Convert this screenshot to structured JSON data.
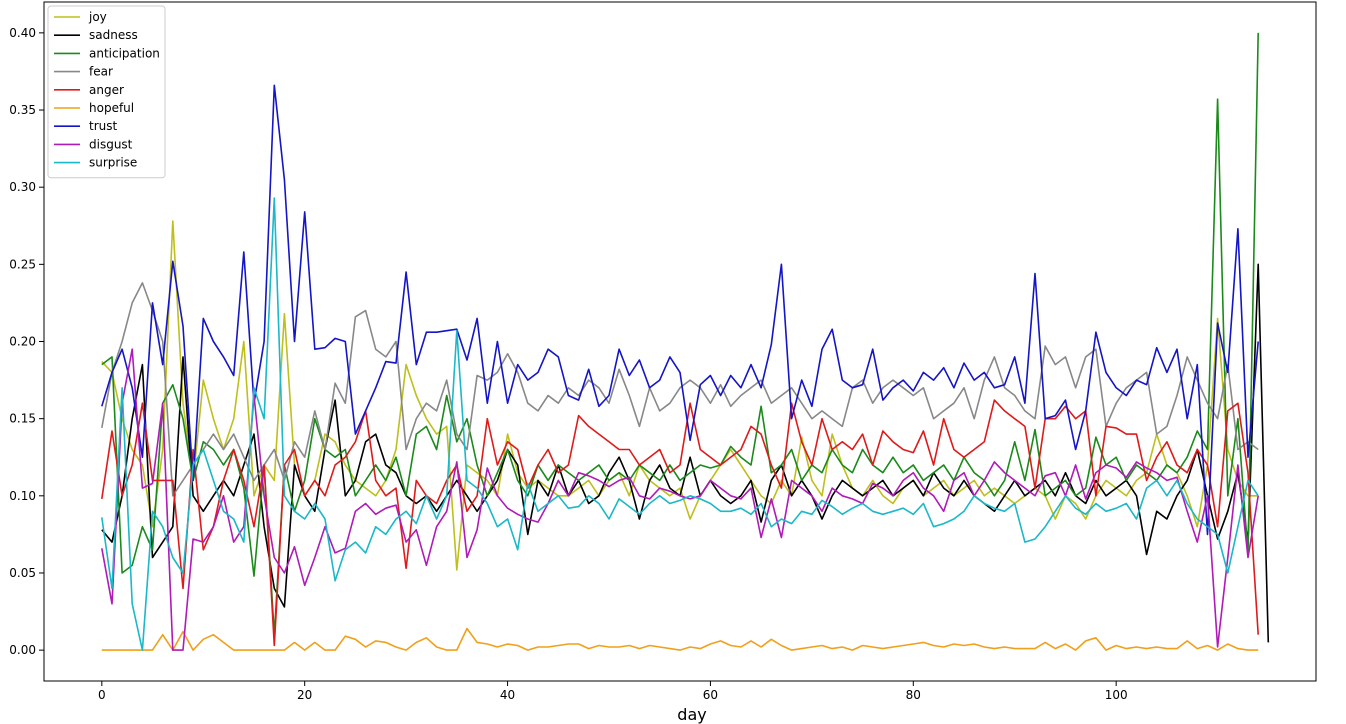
{
  "chart_data": {
    "type": "line",
    "title": "",
    "xlabel": "day",
    "ylabel": "",
    "xlim": [
      -5.7,
      119.7
    ],
    "ylim": [
      -0.02,
      0.42
    ],
    "xticks": [
      0,
      20,
      40,
      60,
      80,
      100
    ],
    "yticks": [
      0.0,
      0.05,
      0.1,
      0.15,
      0.2,
      0.25,
      0.3,
      0.35,
      0.4
    ],
    "grid": false,
    "legend_position": "top-left",
    "series": [
      {
        "name": "joy",
        "color": "#bfbf1c",
        "values": [
          0.187,
          0.18,
          0.15,
          0.13,
          0.12,
          0.08,
          0.13,
          0.278,
          0.16,
          0.11,
          0.175,
          0.15,
          0.13,
          0.15,
          0.2,
          0.1,
          0.12,
          0.11,
          0.218,
          0.12,
          0.1,
          0.11,
          0.14,
          0.135,
          0.12,
          0.11,
          0.105,
          0.1,
          0.11,
          0.13,
          0.185,
          0.165,
          0.15,
          0.14,
          0.145,
          0.052,
          0.12,
          0.115,
          0.11,
          0.1,
          0.14,
          0.115,
          0.105,
          0.11,
          0.105,
          0.1,
          0.1,
          0.105,
          0.11,
          0.1,
          0.11,
          0.115,
          0.1,
          0.12,
          0.11,
          0.105,
          0.1,
          0.105,
          0.085,
          0.1,
          0.11,
          0.12,
          0.13,
          0.12,
          0.11,
          0.1,
          0.095,
          0.11,
          0.1,
          0.138,
          0.11,
          0.1,
          0.14,
          0.12,
          0.105,
          0.1,
          0.11,
          0.1,
          0.095,
          0.105,
          0.11,
          0.1,
          0.105,
          0.11,
          0.1,
          0.105,
          0.11,
          0.1,
          0.105,
          0.1,
          0.095,
          0.1,
          0.105,
          0.1,
          0.085,
          0.1,
          0.095,
          0.085,
          0.1,
          0.11,
          0.105,
          0.1,
          0.11,
          0.115,
          0.14,
          0.12,
          0.115,
          0.1,
          0.08,
          0.12,
          0.215,
          0.13,
          0.11,
          0.1,
          0.1
        ]
      },
      {
        "name": "sadness",
        "color": "#000000",
        "values": [
          0.078,
          0.07,
          0.1,
          0.15,
          0.185,
          0.06,
          0.07,
          0.08,
          0.19,
          0.1,
          0.09,
          0.1,
          0.11,
          0.1,
          0.12,
          0.14,
          0.08,
          0.04,
          0.028,
          0.12,
          0.1,
          0.09,
          0.13,
          0.162,
          0.1,
          0.11,
          0.135,
          0.14,
          0.12,
          0.115,
          0.1,
          0.095,
          0.1,
          0.09,
          0.1,
          0.11,
          0.1,
          0.09,
          0.1,
          0.11,
          0.13,
          0.12,
          0.075,
          0.11,
          0.1,
          0.12,
          0.1,
          0.11,
          0.095,
          0.1,
          0.115,
          0.125,
          0.11,
          0.085,
          0.11,
          0.12,
          0.105,
          0.1,
          0.125,
          0.1,
          0.11,
          0.1,
          0.095,
          0.1,
          0.11,
          0.083,
          0.11,
          0.12,
          0.1,
          0.11,
          0.1,
          0.085,
          0.1,
          0.11,
          0.105,
          0.1,
          0.105,
          0.11,
          0.1,
          0.105,
          0.11,
          0.1,
          0.115,
          0.105,
          0.1,
          0.11,
          0.1,
          0.095,
          0.09,
          0.1,
          0.11,
          0.1,
          0.105,
          0.11,
          0.1,
          0.115,
          0.1,
          0.095,
          0.11,
          0.1,
          0.105,
          0.11,
          0.1,
          0.062,
          0.09,
          0.085,
          0.1,
          0.11,
          0.13,
          0.1,
          0.072,
          0.09,
          0.115,
          0.07,
          0.25,
          0.005
        ]
      },
      {
        "name": "anticipation",
        "color": "#1a8a1a",
        "values": [
          0.185,
          0.19,
          0.05,
          0.055,
          0.08,
          0.065,
          0.16,
          0.172,
          0.15,
          0.11,
          0.135,
          0.13,
          0.12,
          0.13,
          0.105,
          0.048,
          0.12,
          0.01,
          0.12,
          0.09,
          0.11,
          0.15,
          0.13,
          0.125,
          0.13,
          0.1,
          0.11,
          0.12,
          0.11,
          0.125,
          0.1,
          0.14,
          0.145,
          0.13,
          0.165,
          0.135,
          0.15,
          0.12,
          0.1,
          0.115,
          0.13,
          0.11,
          0.1,
          0.12,
          0.11,
          0.12,
          0.115,
          0.11,
          0.115,
          0.12,
          0.11,
          0.115,
          0.11,
          0.12,
          0.115,
          0.11,
          0.12,
          0.11,
          0.115,
          0.12,
          0.118,
          0.12,
          0.132,
          0.125,
          0.12,
          0.158,
          0.115,
          0.12,
          0.13,
          0.11,
          0.12,
          0.115,
          0.13,
          0.12,
          0.115,
          0.13,
          0.12,
          0.115,
          0.125,
          0.115,
          0.12,
          0.11,
          0.115,
          0.12,
          0.11,
          0.125,
          0.115,
          0.11,
          0.1,
          0.11,
          0.135,
          0.11,
          0.143,
          0.1,
          0.105,
          0.11,
          0.1,
          0.105,
          0.138,
          0.12,
          0.125,
          0.11,
          0.12,
          0.115,
          0.11,
          0.12,
          0.115,
          0.125,
          0.142,
          0.13,
          0.357,
          0.1,
          0.15,
          0.062,
          0.4
        ]
      },
      {
        "name": "fear",
        "color": "#888888",
        "values": [
          0.144,
          0.18,
          0.2,
          0.225,
          0.238,
          0.22,
          0.2,
          0.1,
          0.11,
          0.12,
          0.13,
          0.14,
          0.13,
          0.14,
          0.125,
          0.11,
          0.12,
          0.13,
          0.11,
          0.135,
          0.125,
          0.155,
          0.13,
          0.173,
          0.16,
          0.216,
          0.22,
          0.195,
          0.19,
          0.2,
          0.13,
          0.15,
          0.16,
          0.155,
          0.175,
          0.14,
          0.13,
          0.178,
          0.175,
          0.18,
          0.192,
          0.18,
          0.16,
          0.155,
          0.165,
          0.16,
          0.17,
          0.165,
          0.175,
          0.17,
          0.16,
          0.182,
          0.165,
          0.145,
          0.17,
          0.155,
          0.16,
          0.17,
          0.175,
          0.17,
          0.16,
          0.172,
          0.158,
          0.165,
          0.17,
          0.175,
          0.16,
          0.165,
          0.17,
          0.16,
          0.15,
          0.155,
          0.15,
          0.145,
          0.17,
          0.175,
          0.16,
          0.17,
          0.175,
          0.17,
          0.165,
          0.17,
          0.15,
          0.155,
          0.16,
          0.17,
          0.15,
          0.175,
          0.19,
          0.17,
          0.165,
          0.155,
          0.15,
          0.197,
          0.185,
          0.19,
          0.17,
          0.19,
          0.195,
          0.145,
          0.16,
          0.17,
          0.175,
          0.18,
          0.14,
          0.145,
          0.165,
          0.19,
          0.175,
          0.16,
          0.15,
          0.185,
          0.13,
          0.135,
          0.13
        ]
      },
      {
        "name": "anger",
        "color": "#e01a1a",
        "values": [
          0.098,
          0.142,
          0.1,
          0.12,
          0.16,
          0.11,
          0.11,
          0.11,
          0.04,
          0.13,
          0.065,
          0.08,
          0.11,
          0.13,
          0.11,
          0.08,
          0.12,
          0.003,
          0.12,
          0.13,
          0.1,
          0.11,
          0.1,
          0.12,
          0.125,
          0.135,
          0.155,
          0.11,
          0.1,
          0.105,
          0.053,
          0.11,
          0.1,
          0.095,
          0.11,
          0.12,
          0.09,
          0.1,
          0.15,
          0.12,
          0.135,
          0.13,
          0.105,
          0.12,
          0.13,
          0.115,
          0.12,
          0.152,
          0.145,
          0.14,
          0.135,
          0.13,
          0.13,
          0.12,
          0.125,
          0.13,
          0.115,
          0.12,
          0.16,
          0.13,
          0.125,
          0.12,
          0.125,
          0.13,
          0.145,
          0.14,
          0.12,
          0.105,
          0.16,
          0.135,
          0.12,
          0.15,
          0.13,
          0.135,
          0.13,
          0.14,
          0.12,
          0.142,
          0.135,
          0.13,
          0.128,
          0.142,
          0.12,
          0.15,
          0.13,
          0.125,
          0.13,
          0.135,
          0.162,
          0.155,
          0.15,
          0.145,
          0.105,
          0.15,
          0.15,
          0.158,
          0.15,
          0.155,
          0.1,
          0.145,
          0.144,
          0.14,
          0.14,
          0.11,
          0.125,
          0.135,
          0.12,
          0.115,
          0.13,
          0.12,
          0.08,
          0.155,
          0.16,
          0.115,
          0.01
        ]
      },
      {
        "name": "hopeful",
        "color": "#f0a01a",
        "values": [
          0.0,
          0.0,
          0.0,
          0.0,
          0.0,
          0.0,
          0.01,
          0.0,
          0.012,
          0.0,
          0.007,
          0.01,
          0.005,
          0.0,
          0.0,
          0.0,
          0.0,
          0.0,
          0.0,
          0.005,
          0.0,
          0.005,
          0.0,
          0.0,
          0.009,
          0.007,
          0.002,
          0.006,
          0.005,
          0.002,
          0.0,
          0.005,
          0.008,
          0.002,
          0.0,
          0.0,
          0.014,
          0.005,
          0.004,
          0.002,
          0.004,
          0.003,
          0.0,
          0.002,
          0.002,
          0.003,
          0.004,
          0.004,
          0.001,
          0.003,
          0.002,
          0.002,
          0.003,
          0.001,
          0.003,
          0.002,
          0.001,
          0.0,
          0.002,
          0.001,
          0.004,
          0.006,
          0.003,
          0.002,
          0.006,
          0.002,
          0.007,
          0.003,
          0.0,
          0.001,
          0.002,
          0.003,
          0.001,
          0.002,
          0.0,
          0.003,
          0.002,
          0.001,
          0.002,
          0.003,
          0.004,
          0.005,
          0.003,
          0.002,
          0.004,
          0.003,
          0.004,
          0.002,
          0.001,
          0.002,
          0.001,
          0.001,
          0.001,
          0.005,
          0.001,
          0.004,
          0.0,
          0.006,
          0.008,
          0.0,
          0.003,
          0.001,
          0.002,
          0.001,
          0.002,
          0.001,
          0.001,
          0.006,
          0.001,
          0.003,
          0.0,
          0.004,
          0.001,
          0.0,
          0.0
        ]
      },
      {
        "name": "trust",
        "color": "#1414c8",
        "values": [
          0.158,
          0.18,
          0.195,
          0.17,
          0.125,
          0.225,
          0.185,
          0.252,
          0.21,
          0.11,
          0.215,
          0.2,
          0.19,
          0.178,
          0.258,
          0.16,
          0.2,
          0.366,
          0.305,
          0.2,
          0.284,
          0.195,
          0.196,
          0.202,
          0.2,
          0.14,
          0.155,
          0.17,
          0.187,
          0.186,
          0.245,
          0.185,
          0.206,
          0.206,
          0.207,
          0.208,
          0.188,
          0.215,
          0.16,
          0.2,
          0.16,
          0.185,
          0.175,
          0.18,
          0.195,
          0.19,
          0.165,
          0.162,
          0.182,
          0.158,
          0.165,
          0.195,
          0.178,
          0.188,
          0.17,
          0.175,
          0.19,
          0.18,
          0.136,
          0.172,
          0.178,
          0.165,
          0.178,
          0.17,
          0.185,
          0.17,
          0.198,
          0.25,
          0.15,
          0.175,
          0.158,
          0.195,
          0.208,
          0.175,
          0.17,
          0.172,
          0.195,
          0.162,
          0.17,
          0.175,
          0.168,
          0.18,
          0.175,
          0.183,
          0.17,
          0.186,
          0.175,
          0.18,
          0.17,
          0.172,
          0.19,
          0.16,
          0.244,
          0.15,
          0.152,
          0.162,
          0.13,
          0.155,
          0.206,
          0.18,
          0.17,
          0.165,
          0.175,
          0.172,
          0.196,
          0.18,
          0.195,
          0.15,
          0.185,
          0.075,
          0.212,
          0.18,
          0.273,
          0.125,
          0.2
        ]
      },
      {
        "name": "disgust",
        "color": "#b01ab8",
        "values": [
          0.066,
          0.03,
          0.16,
          0.195,
          0.105,
          0.108,
          0.16,
          0.0,
          0.0,
          0.072,
          0.07,
          0.08,
          0.1,
          0.07,
          0.08,
          0.165,
          0.1,
          0.06,
          0.05,
          0.067,
          0.042,
          0.06,
          0.08,
          0.063,
          0.066,
          0.09,
          0.095,
          0.088,
          0.092,
          0.094,
          0.07,
          0.078,
          0.055,
          0.08,
          0.09,
          0.122,
          0.06,
          0.078,
          0.118,
          0.1,
          0.092,
          0.088,
          0.085,
          0.083,
          0.095,
          0.11,
          0.1,
          0.115,
          0.113,
          0.11,
          0.106,
          0.11,
          0.112,
          0.1,
          0.098,
          0.105,
          0.103,
          0.1,
          0.098,
          0.1,
          0.11,
          0.105,
          0.1,
          0.098,
          0.105,
          0.073,
          0.098,
          0.073,
          0.11,
          0.105,
          0.1,
          0.09,
          0.105,
          0.1,
          0.098,
          0.095,
          0.108,
          0.105,
          0.1,
          0.11,
          0.115,
          0.105,
          0.1,
          0.09,
          0.11,
          0.115,
          0.1,
          0.11,
          0.122,
          0.115,
          0.11,
          0.105,
          0.1,
          0.113,
          0.115,
          0.1,
          0.12,
          0.098,
          0.115,
          0.12,
          0.118,
          0.112,
          0.122,
          0.118,
          0.115,
          0.11,
          0.112,
          0.09,
          0.07,
          0.1,
          0.002,
          0.06,
          0.12,
          0.06,
          0.1
        ]
      },
      {
        "name": "surprise",
        "color": "#1ab8c8",
        "values": [
          0.086,
          0.04,
          0.17,
          0.03,
          0.0,
          0.09,
          0.08,
          0.06,
          0.05,
          0.12,
          0.13,
          0.11,
          0.09,
          0.085,
          0.07,
          0.17,
          0.15,
          0.293,
          0.1,
          0.09,
          0.085,
          0.095,
          0.085,
          0.045,
          0.065,
          0.07,
          0.063,
          0.08,
          0.075,
          0.085,
          0.09,
          0.082,
          0.1,
          0.085,
          0.1,
          0.207,
          0.11,
          0.105,
          0.095,
          0.08,
          0.085,
          0.065,
          0.108,
          0.09,
          0.095,
          0.1,
          0.092,
          0.093,
          0.1,
          0.095,
          0.085,
          0.098,
          0.093,
          0.088,
          0.095,
          0.1,
          0.095,
          0.097,
          0.1,
          0.098,
          0.095,
          0.09,
          0.09,
          0.092,
          0.088,
          0.095,
          0.08,
          0.085,
          0.082,
          0.09,
          0.088,
          0.097,
          0.093,
          0.088,
          0.092,
          0.095,
          0.09,
          0.088,
          0.09,
          0.092,
          0.088,
          0.095,
          0.08,
          0.082,
          0.085,
          0.09,
          0.1,
          0.095,
          0.092,
          0.09,
          0.095,
          0.07,
          0.072,
          0.08,
          0.09,
          0.1,
          0.092,
          0.088,
          0.095,
          0.09,
          0.092,
          0.095,
          0.085,
          0.105,
          0.11,
          0.1,
          0.11,
          0.095,
          0.085,
          0.08,
          0.075,
          0.05,
          0.08,
          0.11,
          0.1
        ]
      }
    ]
  }
}
